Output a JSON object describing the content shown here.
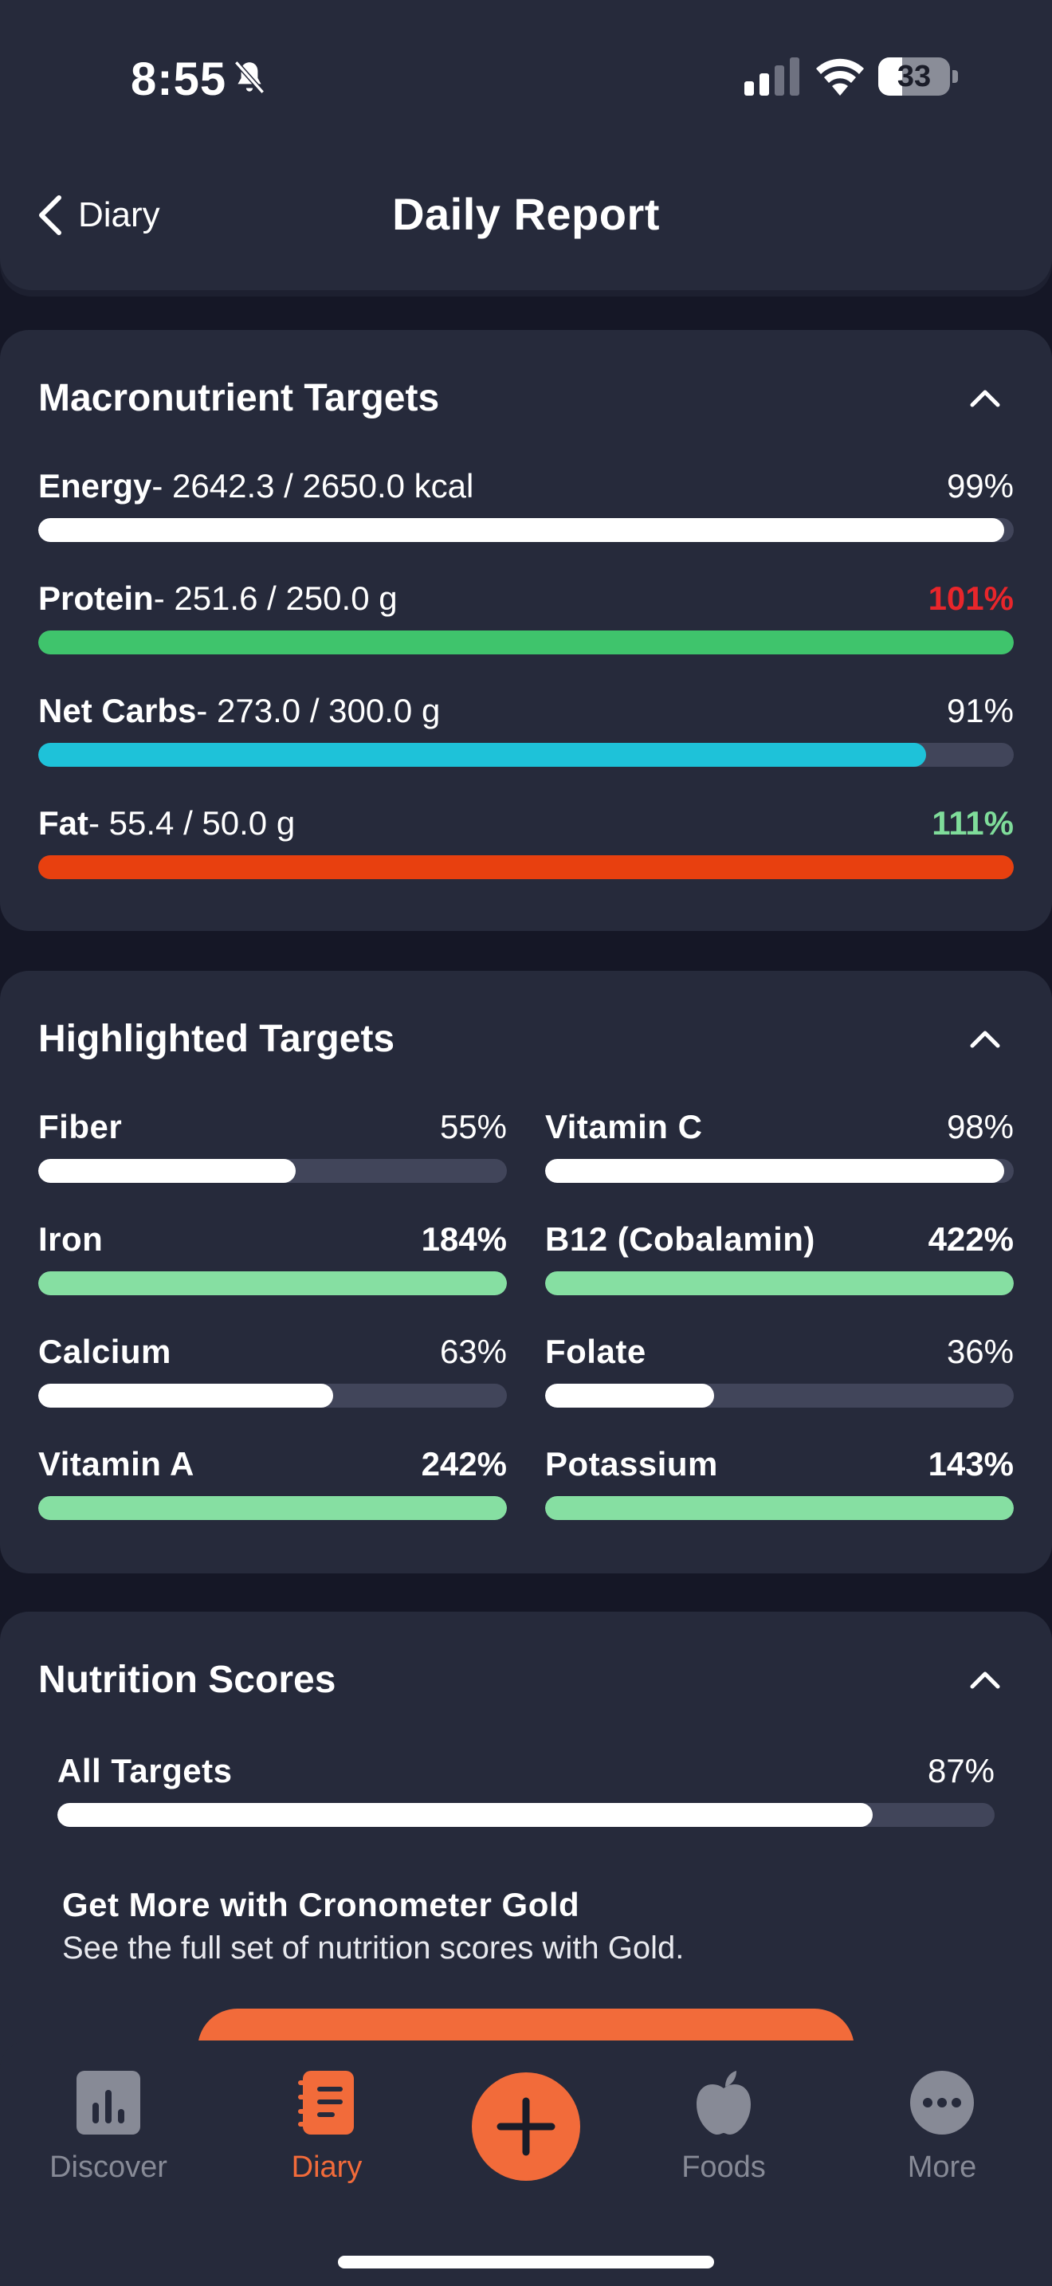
{
  "status_bar": {
    "time": "8:55",
    "battery": "33",
    "battery_level": 0.33
  },
  "header": {
    "back_label": "Diary",
    "title": "Daily Report"
  },
  "macros": {
    "title": "Macronutrient Targets",
    "items": [
      {
        "name": "Energy",
        "detail": "- 2642.3 / 2650.0 kcal",
        "percent_label": "99%",
        "fill": 0.99,
        "color": "#ffffff",
        "pct_style": ""
      },
      {
        "name": "Protein",
        "detail": "- 251.6 / 250.0 g",
        "percent_label": "101%",
        "fill": 1.0,
        "color": "#3fc46c",
        "pct_style": "over-red"
      },
      {
        "name": "Net Carbs",
        "detail": "- 273.0 / 300.0 g",
        "percent_label": "91%",
        "fill": 0.91,
        "color": "#1ec2d9",
        "pct_style": ""
      },
      {
        "name": "Fat",
        "detail": "- 55.4 / 50.0 g",
        "percent_label": "111%",
        "fill": 1.0,
        "color": "#e8400f",
        "pct_style": "over-green"
      }
    ]
  },
  "highlighted": {
    "title": "Highlighted Targets",
    "items": [
      {
        "name": "Fiber",
        "percent_label": "55%",
        "fill": 0.55,
        "color": "#ffffff",
        "bold": false
      },
      {
        "name": "Vitamin C",
        "percent_label": "98%",
        "fill": 0.98,
        "color": "#ffffff",
        "bold": false
      },
      {
        "name": "Iron",
        "percent_label": "184%",
        "fill": 1.0,
        "color": "#86dfa2",
        "bold": true
      },
      {
        "name": "B12 (Cobalamin)",
        "percent_label": "422%",
        "fill": 1.0,
        "color": "#86dfa2",
        "bold": true
      },
      {
        "name": "Calcium",
        "percent_label": "63%",
        "fill": 0.63,
        "color": "#ffffff",
        "bold": false
      },
      {
        "name": "Folate",
        "percent_label": "36%",
        "fill": 0.36,
        "color": "#ffffff",
        "bold": false
      },
      {
        "name": "Vitamin A",
        "percent_label": "242%",
        "fill": 1.0,
        "color": "#86dfa2",
        "bold": true
      },
      {
        "name": "Potassium",
        "percent_label": "143%",
        "fill": 1.0,
        "color": "#86dfa2",
        "bold": true
      }
    ]
  },
  "scores": {
    "title": "Nutrition Scores",
    "all_targets": {
      "name": "All Targets",
      "percent_label": "87%",
      "fill": 0.87,
      "color": "#ffffff"
    },
    "gold_title": "Get More with Cronometer Gold",
    "gold_desc": "See the full set of nutrition scores with Gold."
  },
  "tabs": [
    {
      "label": "Discover",
      "icon": "bar-chart-icon",
      "active": false
    },
    {
      "label": "Diary",
      "icon": "notebook-icon",
      "active": true
    },
    {
      "label": "Foods",
      "icon": "apple-icon",
      "active": false
    },
    {
      "label": "More",
      "icon": "more-dots-icon",
      "active": false
    }
  ],
  "colors": {
    "accent": "#f26b3a",
    "background": "#151726",
    "card": "#262a3b"
  }
}
